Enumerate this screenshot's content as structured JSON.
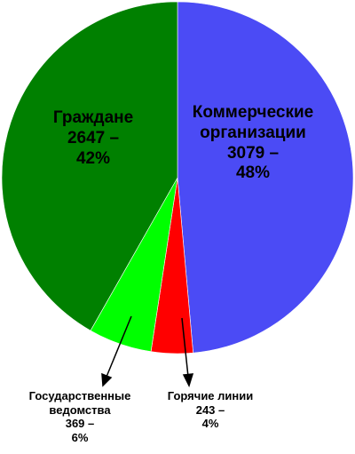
{
  "chart_data": {
    "type": "pie",
    "categories": [
      "Коммерческие организации",
      "Горячие линии",
      "Государственные ведомства",
      "Граждане"
    ],
    "values": [
      3079,
      243,
      369,
      2647
    ],
    "value_labels": [
      "3079 –",
      "243 –",
      "369 –",
      "2647 –"
    ],
    "percent_labels": [
      "48%",
      "4%",
      "6%",
      "42%"
    ],
    "colors": [
      "#4b4bf5",
      "#ff0000",
      "#00ff00",
      "#008000"
    ]
  }
}
